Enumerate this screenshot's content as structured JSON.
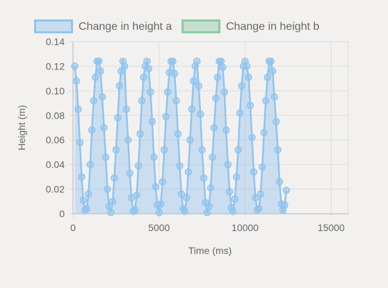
{
  "chart_data": {
    "type": "line",
    "xlabel": "Time (ms)",
    "ylabel": "Height (m)",
    "xlim": [
      0,
      16000
    ],
    "ylim": [
      0,
      0.14
    ],
    "x_ticks": [
      0,
      5000,
      10000,
      15000
    ],
    "x_tick_labels": [
      "0",
      "5000",
      "10000",
      "15000"
    ],
    "y_ticks": [
      0,
      0.02,
      0.04,
      0.06,
      0.08,
      0.1,
      0.12,
      0.14
    ],
    "y_tick_labels": [
      "0",
      "0.02",
      "0.04",
      "0.06",
      "0.08",
      "0.10",
      "0.12",
      "0.14"
    ],
    "grid": true,
    "legend_position": "top",
    "series": [
      {
        "name": "Change in height a",
        "color": "#90c4ee",
        "fill": true,
        "points": [
          [
            100,
            0.12
          ],
          [
            200,
            0.108
          ],
          [
            300,
            0.085
          ],
          [
            400,
            0.058
          ],
          [
            500,
            0.03
          ],
          [
            600,
            0.011
          ],
          [
            700,
            0.003
          ],
          [
            800,
            0.004
          ],
          [
            900,
            0.016
          ],
          [
            1000,
            0.04
          ],
          [
            1100,
            0.068
          ],
          [
            1200,
            0.092
          ],
          [
            1300,
            0.111
          ],
          [
            1400,
            0.124
          ],
          [
            1500,
            0.124
          ],
          [
            1600,
            0.116
          ],
          [
            1700,
            0.095
          ],
          [
            1800,
            0.07
          ],
          [
            1900,
            0.046
          ],
          [
            2000,
            0.02
          ],
          [
            2100,
            0.006
          ],
          [
            2200,
            0.001
          ],
          [
            2300,
            0.01
          ],
          [
            2400,
            0.029
          ],
          [
            2500,
            0.052
          ],
          [
            2600,
            0.078
          ],
          [
            2700,
            0.104
          ],
          [
            2800,
            0.116
          ],
          [
            2900,
            0.124
          ],
          [
            3000,
            0.12
          ],
          [
            3100,
            0.085
          ],
          [
            3200,
            0.06
          ],
          [
            3300,
            0.033
          ],
          [
            3400,
            0.013
          ],
          [
            3500,
            0.002
          ],
          [
            3600,
            0.003
          ],
          [
            3700,
            0.015
          ],
          [
            3800,
            0.039
          ],
          [
            3900,
            0.065
          ],
          [
            4000,
            0.092
          ],
          [
            4100,
            0.111
          ],
          [
            4200,
            0.12
          ],
          [
            4300,
            0.124
          ],
          [
            4400,
            0.118
          ],
          [
            4500,
            0.099
          ],
          [
            4600,
            0.075
          ],
          [
            4700,
            0.046
          ],
          [
            4800,
            0.022
          ],
          [
            4900,
            0.007
          ],
          [
            5000,
            0.001
          ],
          [
            5100,
            0.008
          ],
          [
            5200,
            0.026
          ],
          [
            5300,
            0.052
          ],
          [
            5400,
            0.079
          ],
          [
            5500,
            0.099
          ],
          [
            5600,
            0.115
          ],
          [
            5700,
            0.124
          ],
          [
            5800,
            0.124
          ],
          [
            5900,
            0.114
          ],
          [
            6000,
            0.092
          ],
          [
            6100,
            0.065
          ],
          [
            6200,
            0.039
          ],
          [
            6300,
            0.016
          ],
          [
            6400,
            0.004
          ],
          [
            6500,
            0.002
          ],
          [
            6600,
            0.013
          ],
          [
            6700,
            0.034
          ],
          [
            6800,
            0.06
          ],
          [
            6900,
            0.085
          ],
          [
            7000,
            0.108
          ],
          [
            7100,
            0.12
          ],
          [
            7200,
            0.124
          ],
          [
            7300,
            0.104
          ],
          [
            7400,
            0.081
          ],
          [
            7500,
            0.052
          ],
          [
            7600,
            0.029
          ],
          [
            7700,
            0.009
          ],
          [
            7800,
            0.001
          ],
          [
            7900,
            0.006
          ],
          [
            8000,
            0.021
          ],
          [
            8100,
            0.046
          ],
          [
            8200,
            0.07
          ],
          [
            8300,
            0.094
          ],
          [
            8400,
            0.111
          ],
          [
            8500,
            0.124
          ],
          [
            8600,
            0.124
          ],
          [
            8700,
            0.119
          ],
          [
            8800,
            0.099
          ],
          [
            8900,
            0.068
          ],
          [
            9000,
            0.04
          ],
          [
            9100,
            0.018
          ],
          [
            9200,
            0.005
          ],
          [
            9300,
            0.002
          ],
          [
            9400,
            0.012
          ],
          [
            9500,
            0.03
          ],
          [
            9600,
            0.052
          ],
          [
            9700,
            0.082
          ],
          [
            9800,
            0.104
          ],
          [
            9900,
            0.12
          ],
          [
            10000,
            0.124
          ],
          [
            10100,
            0.12
          ],
          [
            10200,
            0.111
          ],
          [
            10300,
            0.088
          ],
          [
            10400,
            0.062
          ],
          [
            10500,
            0.034
          ],
          [
            10600,
            0.013
          ],
          [
            10700,
            0.003
          ],
          [
            10800,
            0.004
          ],
          [
            10900,
            0.016
          ],
          [
            11000,
            0.038
          ],
          [
            11100,
            0.066
          ],
          [
            11200,
            0.092
          ],
          [
            11300,
            0.111
          ],
          [
            11400,
            0.124
          ],
          [
            11500,
            0.124
          ],
          [
            11600,
            0.116
          ],
          [
            11700,
            0.095
          ],
          [
            11800,
            0.075
          ],
          [
            11900,
            0.052
          ],
          [
            12000,
            0.026
          ],
          [
            12100,
            0.008
          ],
          [
            12200,
            0.003
          ],
          [
            12300,
            0.007
          ],
          [
            12400,
            0.019
          ]
        ]
      },
      {
        "name": "Change in height b",
        "color": "#8ec9a3",
        "fill": true,
        "points": []
      }
    ]
  }
}
